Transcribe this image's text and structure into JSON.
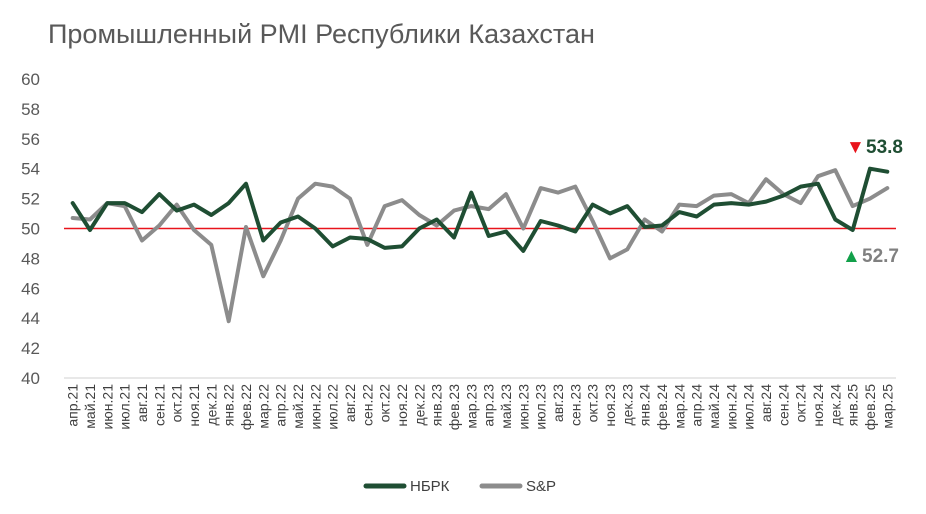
{
  "chart_data": {
    "type": "line",
    "title": "Промышленный PMI Республики Казахстан",
    "x": [
      "апр.21",
      "май.21",
      "июн.21",
      "июл.21",
      "авг.21",
      "сен.21",
      "окт.21",
      "ноя.21",
      "дек.21",
      "янв.22",
      "фев.22",
      "мар.22",
      "апр.22",
      "май.22",
      "июн.22",
      "июл.22",
      "авг.22",
      "сен.22",
      "окт.22",
      "ноя.22",
      "дек.22",
      "янв.23",
      "фев.23",
      "мар.23",
      "апр.23",
      "май.23",
      "июн.23",
      "июл.23",
      "авг.23",
      "сен.23",
      "окт.23",
      "ноя.23",
      "дек.23",
      "янв.24",
      "фев.24",
      "мар.24",
      "апр.24",
      "май.24",
      "июн.24",
      "июл.24",
      "авг.24",
      "сен.24",
      "окт.24",
      "ноя.24",
      "дек.24",
      "янв.25",
      "фев.25",
      "мар.25"
    ],
    "yticks": [
      "40",
      "42",
      "44",
      "46",
      "48",
      "50",
      "52",
      "54",
      "56",
      "58",
      "60"
    ],
    "ylim": [
      40,
      60
    ],
    "reference_line": 50,
    "series": [
      {
        "name": "НБРК",
        "color": "#1F4E33",
        "values": [
          51.7,
          49.9,
          51.7,
          51.7,
          51.1,
          52.3,
          51.2,
          51.6,
          50.9,
          51.7,
          53.0,
          49.2,
          50.4,
          50.8,
          50.0,
          48.8,
          49.4,
          49.3,
          48.7,
          48.8,
          50.0,
          50.6,
          49.4,
          52.4,
          49.5,
          49.8,
          48.5,
          50.5,
          50.2,
          49.8,
          51.6,
          51.0,
          51.5,
          50.1,
          50.2,
          51.1,
          50.8,
          51.6,
          51.7,
          51.6,
          51.8,
          52.2,
          52.8,
          53.0,
          50.6,
          49.9,
          54.0,
          53.8
        ]
      },
      {
        "name": "S&P",
        "color": "#8C8C8C",
        "values": [
          50.7,
          50.6,
          51.7,
          51.5,
          49.2,
          50.2,
          51.6,
          49.9,
          48.9,
          43.8,
          50.1,
          46.8,
          49.2,
          52.0,
          53.0,
          52.8,
          52.0,
          48.9,
          51.5,
          51.9,
          50.9,
          50.2,
          51.2,
          51.5,
          51.3,
          52.3,
          50.0,
          52.7,
          52.4,
          52.8,
          50.5,
          48.0,
          48.6,
          50.6,
          49.8,
          51.6,
          51.5,
          52.2,
          52.3,
          51.7,
          53.3,
          52.3,
          51.7,
          53.5,
          53.9,
          51.5,
          52.0,
          52.7
        ]
      }
    ],
    "annotations": {
      "nbrk_last": {
        "text": "53.8",
        "marker": "▼",
        "marker_color": "#E8141C",
        "text_color": "#1F4E33"
      },
      "sp_last": {
        "text": "52.7",
        "marker": "▲",
        "marker_color": "#12A04A",
        "text_color": "#808080"
      }
    },
    "reference_color": "#E8141C",
    "legend_position": "bottom"
  }
}
